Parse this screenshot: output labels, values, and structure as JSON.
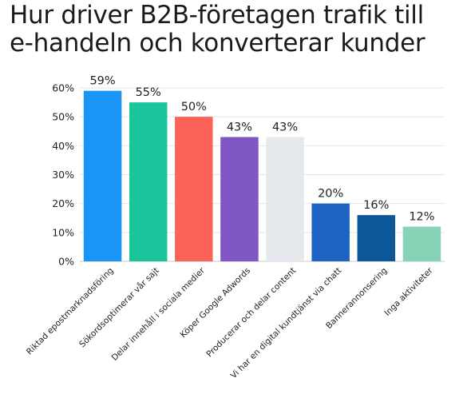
{
  "title_lines": [
    "Hur driver B2B-företagen trafik till",
    "e-handeln och konverterar kunder"
  ],
  "chart_data": {
    "type": "bar",
    "title": "Hur driver B2B-företagen trafik till e-handeln och konverterar kunder",
    "xlabel": "",
    "ylabel": "",
    "ylim": [
      0,
      60
    ],
    "yticks": [
      0,
      10,
      20,
      30,
      40,
      50,
      60
    ],
    "ytick_labels": [
      "0%",
      "10%",
      "20%",
      "30%",
      "40%",
      "50%",
      "60%"
    ],
    "grid": true,
    "categories": [
      "Riktad epostmarknadsföring",
      "Sökordsoptimerar vår sajt",
      "Delar innehåll i sociala medier",
      "Köper Google Adwords",
      "Producerar och delar content",
      "Vi har en digital kundtjänst via chatt",
      "Bannerannonsering",
      "Inga aktiviteter"
    ],
    "values": [
      59,
      55,
      50,
      43,
      43,
      20,
      16,
      12
    ],
    "value_labels": [
      "59%",
      "55%",
      "50%",
      "43%",
      "43%",
      "20%",
      "16%",
      "12%"
    ],
    "colors": [
      "#1a94f5",
      "#1cc49c",
      "#fb6358",
      "#7f56c4",
      "#e5e8ec",
      "#1c63c2",
      "#0b5799",
      "#86d3b6"
    ]
  }
}
